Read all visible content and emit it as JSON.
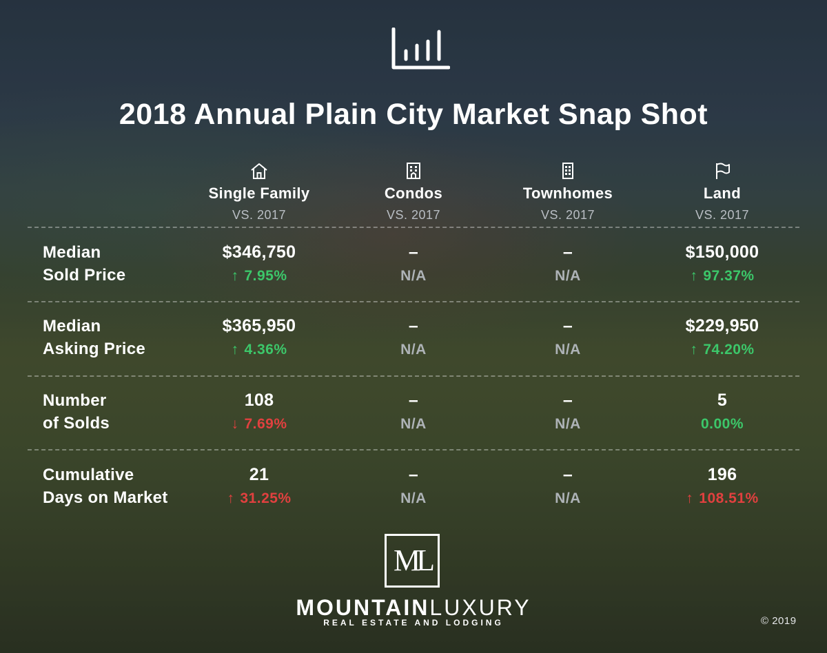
{
  "header": {
    "icon": "bar-chart-icon",
    "title": "2018 Annual Plain City Market Snap Shot"
  },
  "columns": [
    {
      "icon": "house-icon",
      "name": "Single Family",
      "vs": "VS. 2017"
    },
    {
      "icon": "condo-building-icon",
      "name": "Condos",
      "vs": "VS. 2017"
    },
    {
      "icon": "townhome-building-icon",
      "name": "Townhomes",
      "vs": "VS. 2017"
    },
    {
      "icon": "flag-icon",
      "name": "Land",
      "vs": "VS. 2017"
    }
  ],
  "rows": [
    {
      "label_line1": "Median",
      "label_line2": "Sold Price",
      "cells": [
        {
          "value": "$346,750",
          "arrow": "↑",
          "change": "7.95%",
          "status": "up"
        },
        {
          "value": "–",
          "arrow": "",
          "change": "N/A",
          "status": "na"
        },
        {
          "value": "–",
          "arrow": "",
          "change": "N/A",
          "status": "na"
        },
        {
          "value": "$150,000",
          "arrow": "↑",
          "change": "97.37%",
          "status": "up"
        }
      ]
    },
    {
      "label_line1": "Median",
      "label_line2": "Asking Price",
      "cells": [
        {
          "value": "$365,950",
          "arrow": "↑",
          "change": "4.36%",
          "status": "up"
        },
        {
          "value": "–",
          "arrow": "",
          "change": "N/A",
          "status": "na"
        },
        {
          "value": "–",
          "arrow": "",
          "change": "N/A",
          "status": "na"
        },
        {
          "value": "$229,950",
          "arrow": "↑",
          "change": "74.20%",
          "status": "up"
        }
      ]
    },
    {
      "label_line1": "Number",
      "label_line2": "of Solds",
      "cells": [
        {
          "value": "108",
          "arrow": "↓",
          "change": "7.69%",
          "status": "down"
        },
        {
          "value": "–",
          "arrow": "",
          "change": "N/A",
          "status": "na"
        },
        {
          "value": "–",
          "arrow": "",
          "change": "N/A",
          "status": "na"
        },
        {
          "value": "5",
          "arrow": "",
          "change": "0.00%",
          "status": "neutral"
        }
      ]
    },
    {
      "label_line1": "Cumulative",
      "label_line2": "Days on Market",
      "cells": [
        {
          "value": "21",
          "arrow": "↑",
          "change": "31.25%",
          "status": "down"
        },
        {
          "value": "–",
          "arrow": "",
          "change": "N/A",
          "status": "na"
        },
        {
          "value": "–",
          "arrow": "",
          "change": "N/A",
          "status": "na"
        },
        {
          "value": "196",
          "arrow": "↑",
          "change": "108.51%",
          "status": "down"
        }
      ]
    }
  ],
  "colors": {
    "up": "#3cc76a",
    "down": "#e1403f",
    "na": "#aeb3b7"
  },
  "footer": {
    "logo_monogram": "ML",
    "brand_bold": "MOUNTAIN",
    "brand_light": "LUXURY",
    "brand_sub": "REAL ESTATE AND LODGING",
    "copyright": "© 2019"
  }
}
